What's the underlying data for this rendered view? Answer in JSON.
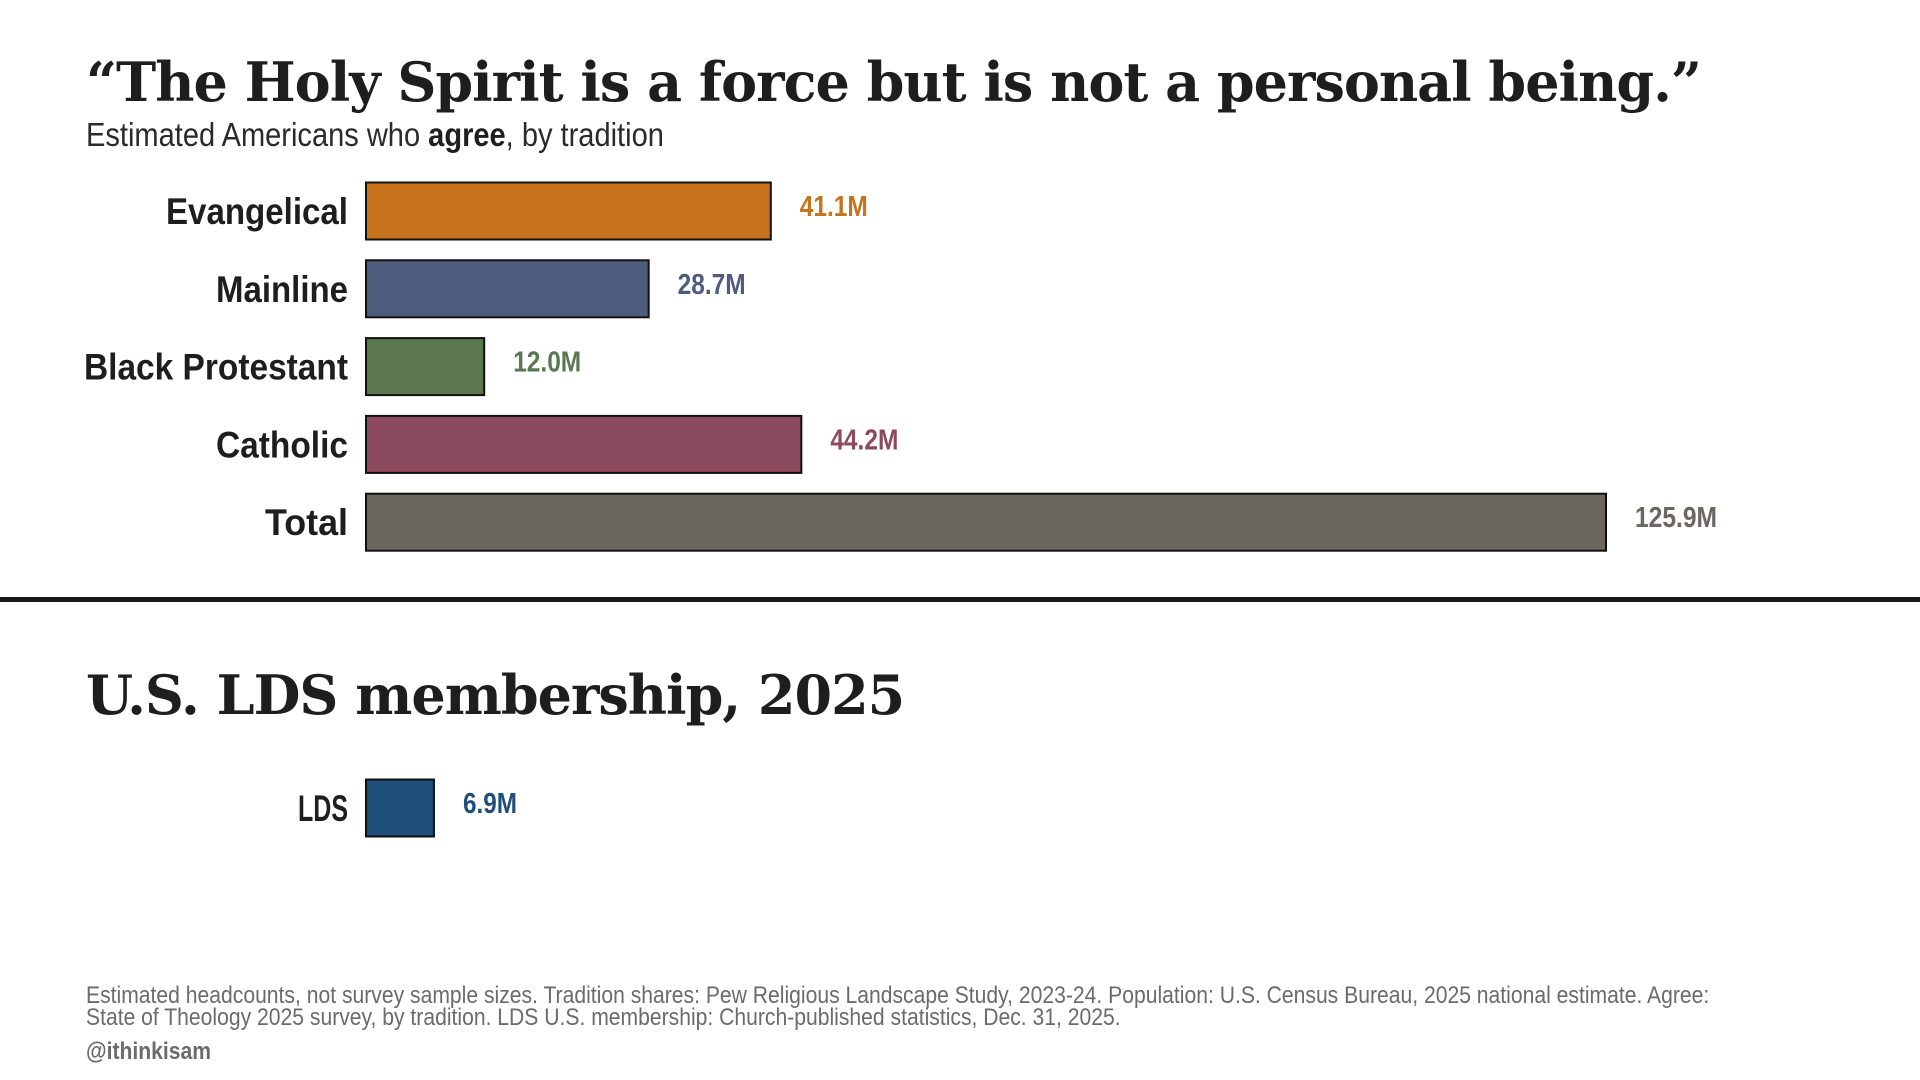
{
  "main": {
    "title": "“The Holy Spirit is a force but is not a personal being.”",
    "subtitle_before": "Estimated Americans who ",
    "subtitle_bold": "agree",
    "subtitle_after": ", by tradition"
  },
  "lds_section": {
    "title": "U.S. LDS membership, 2025"
  },
  "footer": {
    "note": "Estimated headcounts, not survey sample sizes. Tradition shares: Pew Religious Landscape Study, 2023-24. Population: U.S. Census Bureau, 2025 national estimate. Agree: State of Theology 2025 survey, by tradition. LDS U.S. membership: Church-published statistics, Dec. 31, 2025.",
    "handle": "@ithinkisam"
  },
  "chart_data": [
    {
      "type": "bar",
      "orientation": "horizontal",
      "title": "“The Holy Spirit is a force but is not a personal being.”",
      "subtitle": "Estimated Americans who agree, by tradition",
      "unit": "M",
      "categories": [
        "Evangelical",
        "Mainline",
        "Black Protestant",
        "Catholic",
        "Total"
      ],
      "values": [
        41.1,
        28.7,
        12.0,
        44.2,
        125.9
      ],
      "value_labels": [
        "41.1M",
        "28.7M",
        "12.0M",
        "44.2M",
        "125.9M"
      ],
      "colors": [
        "#c8731c",
        "#4e5c7e",
        "#5a7750",
        "#8b4a5e",
        "#6b6660"
      ],
      "grid": false
    },
    {
      "type": "bar",
      "orientation": "horizontal",
      "title": "U.S. LDS membership, 2025",
      "unit": "M",
      "categories": [
        "LDS"
      ],
      "values": [
        6.9
      ],
      "value_labels": [
        "6.9M"
      ],
      "colors": [
        "#1f4e7a"
      ],
      "grid": false
    }
  ]
}
